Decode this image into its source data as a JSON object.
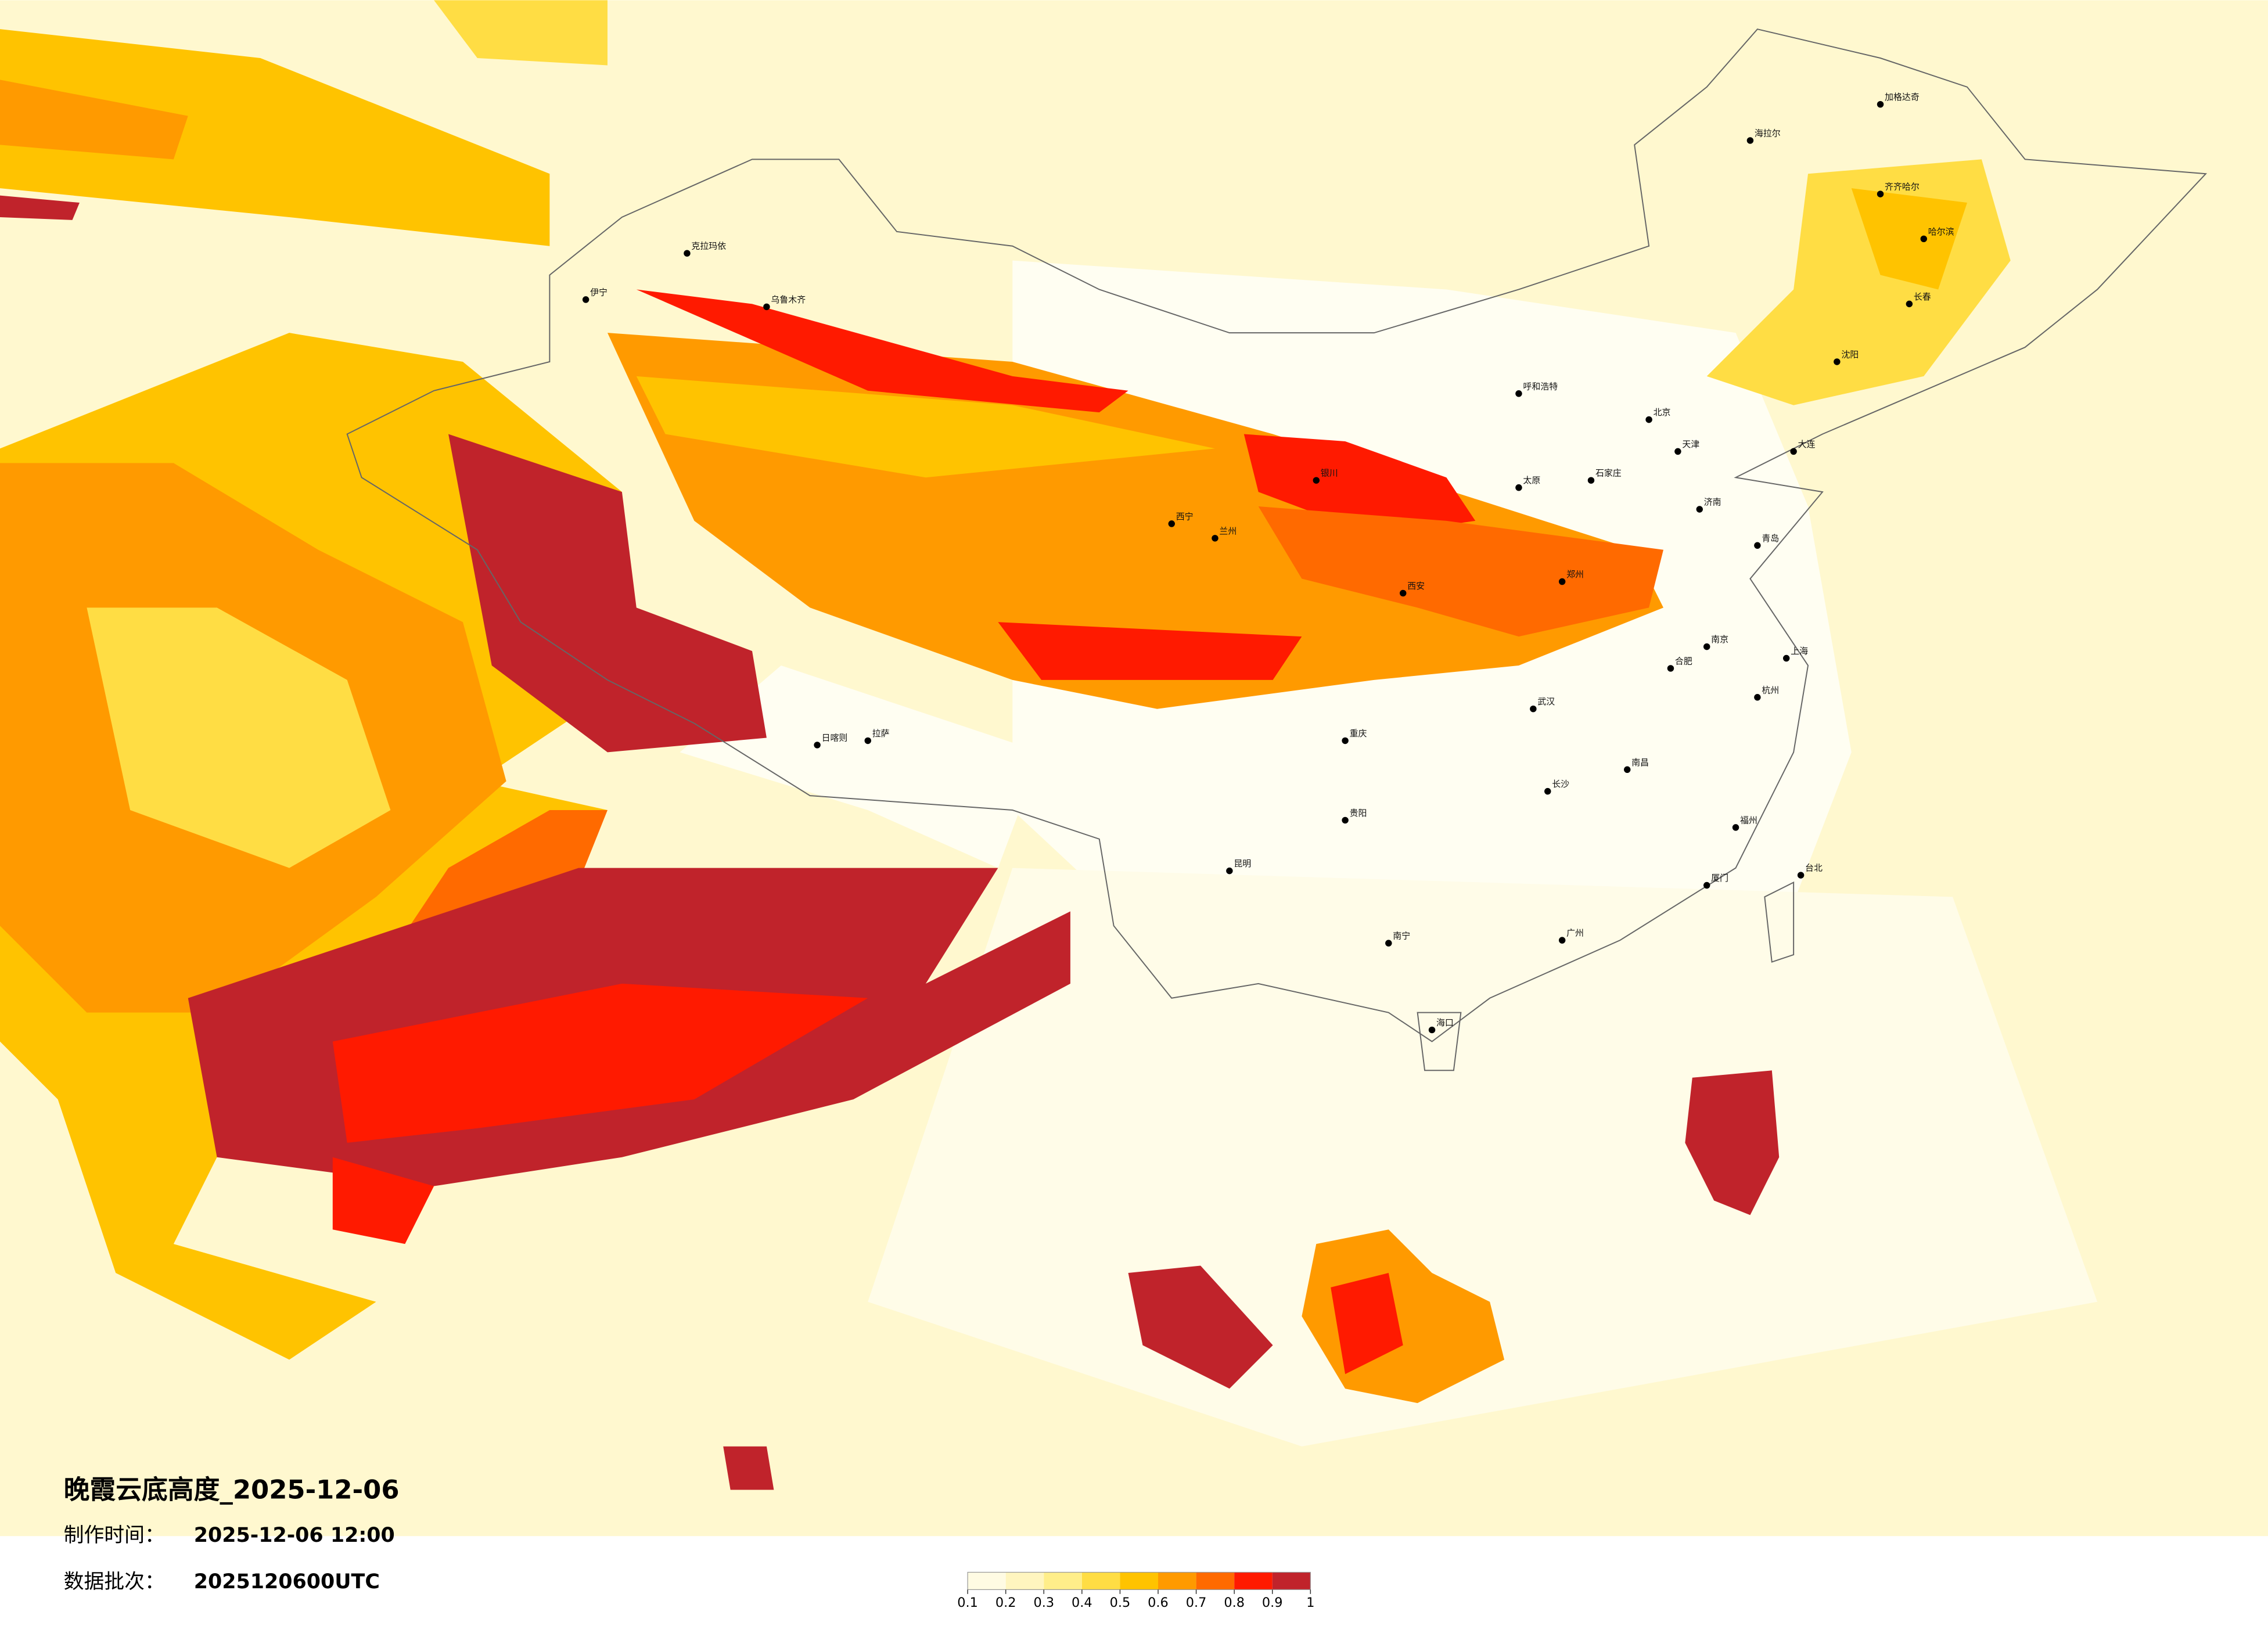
{
  "title": "晚霞云底高度_2025-12-06",
  "meta": [
    {
      "label": "制作时间：",
      "value": "2025-12-06 12:00"
    },
    {
      "label": "数据批次：",
      "value": "2025120600UTC"
    }
  ],
  "colorbar": {
    "ticks": [
      0.1,
      0.2,
      0.3,
      0.4,
      0.5,
      0.6,
      0.7,
      0.8,
      0.9,
      1
    ],
    "colors": [
      "#fffbe3",
      "#fff5bf",
      "#ffee8a",
      "#ffdd44",
      "#ffc300",
      "#ff9a00",
      "#ff6a00",
      "#ff1a00",
      "#c0232b"
    ]
  },
  "cities": [
    "北京",
    "天津",
    "上海",
    "广州",
    "武汉",
    "重庆",
    "西安",
    "兰州",
    "乌鲁木齐",
    "拉萨",
    "哈尔滨",
    "长春",
    "沈阳",
    "呼和浩特",
    "银川",
    "西宁",
    "昆明",
    "贵阳",
    "南宁",
    "海口",
    "台北",
    "郑州",
    "济南",
    "南京",
    "杭州",
    "长沙",
    "南昌",
    "福州",
    "合肥",
    "石家庄",
    "太原",
    "日喀则",
    "伊宁",
    "克拉玛依",
    "海拉尔",
    "加格达奇",
    "齐齐哈尔",
    "大连",
    "青岛",
    "厦门"
  ]
}
